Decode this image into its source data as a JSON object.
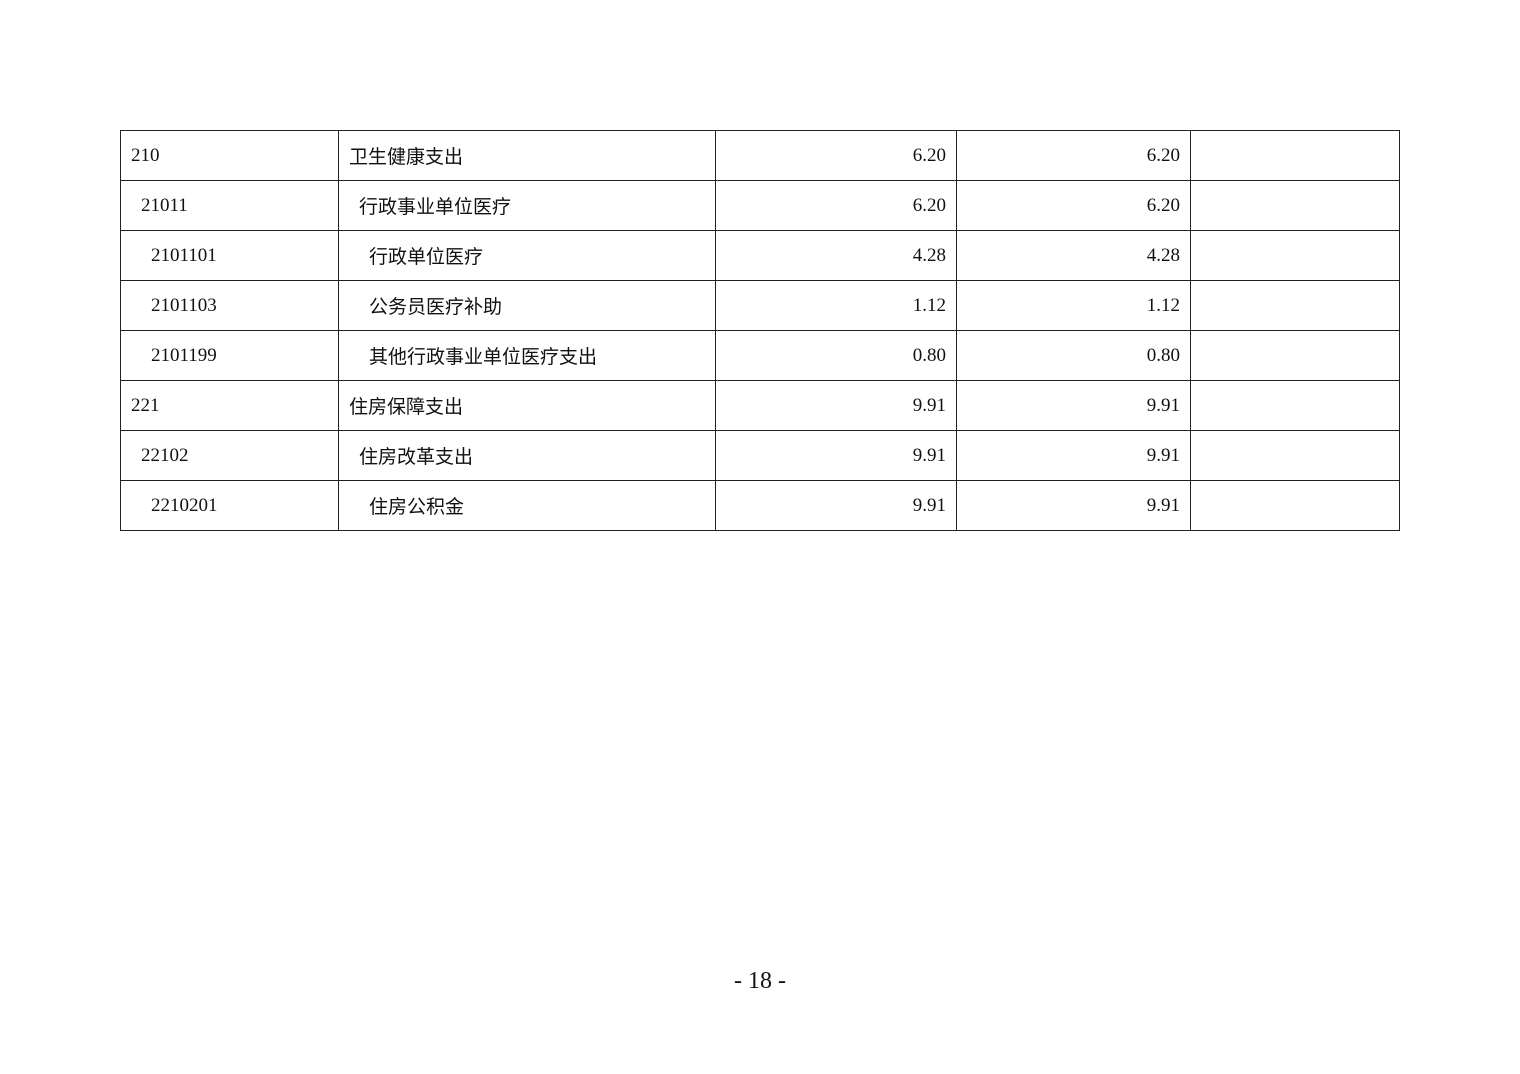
{
  "table": {
    "rows": [
      {
        "level": 0,
        "code": "210",
        "name": "卫生健康支出",
        "v1": "6.20",
        "v2": "6.20",
        "v3": ""
      },
      {
        "level": 1,
        "code": "21011",
        "name": "行政事业单位医疗",
        "v1": "6.20",
        "v2": "6.20",
        "v3": ""
      },
      {
        "level": 2,
        "code": "2101101",
        "name": "行政单位医疗",
        "v1": "4.28",
        "v2": "4.28",
        "v3": ""
      },
      {
        "level": 2,
        "code": "2101103",
        "name": "公务员医疗补助",
        "v1": "1.12",
        "v2": "1.12",
        "v3": ""
      },
      {
        "level": 2,
        "code": "2101199",
        "name": "其他行政事业单位医疗支出",
        "v1": "0.80",
        "v2": "0.80",
        "v3": ""
      },
      {
        "level": 0,
        "code": "221",
        "name": "住房保障支出",
        "v1": "9.91",
        "v2": "9.91",
        "v3": ""
      },
      {
        "level": 1,
        "code": "22102",
        "name": "住房改革支出",
        "v1": "9.91",
        "v2": "9.91",
        "v3": ""
      },
      {
        "level": 2,
        "code": "2210201",
        "name": "住房公积金",
        "v1": "9.91",
        "v2": "9.91",
        "v3": ""
      }
    ]
  },
  "footer": {
    "page_number": "- 18 -"
  }
}
